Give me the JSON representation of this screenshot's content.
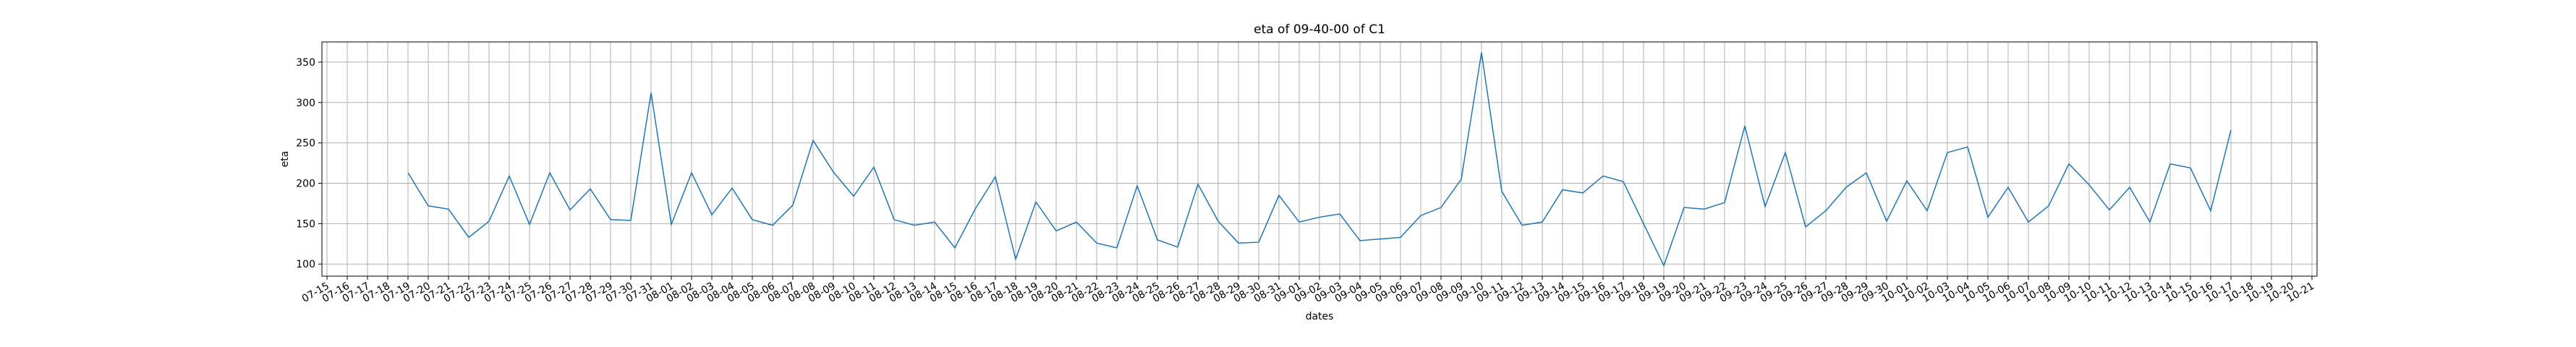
{
  "chart_data": {
    "type": "line",
    "title": "eta of 09-40-00 of C1",
    "x_label": "dates",
    "y_label": "eta",
    "categories": [
      "07-15",
      "07-16",
      "07-17",
      "07-18",
      "07-19",
      "07-20",
      "07-21",
      "07-22",
      "07-23",
      "07-24",
      "07-25",
      "07-26",
      "07-27",
      "07-28",
      "07-29",
      "07-30",
      "07-31",
      "08-01",
      "08-02",
      "08-03",
      "08-04",
      "08-05",
      "08-06",
      "08-07",
      "08-08",
      "08-09",
      "08-10",
      "08-11",
      "08-12",
      "08-13",
      "08-14",
      "08-15",
      "08-16",
      "08-17",
      "08-18",
      "08-19",
      "08-20",
      "08-21",
      "08-22",
      "08-23",
      "08-24",
      "08-25",
      "08-26",
      "08-27",
      "08-28",
      "08-29",
      "08-30",
      "08-31",
      "09-01",
      "09-02",
      "09-03",
      "09-04",
      "09-05",
      "09-06",
      "09-07",
      "09-08",
      "09-09",
      "09-10",
      "09-11",
      "09-12",
      "09-13",
      "09-14",
      "09-15",
      "09-16",
      "09-17",
      "09-18",
      "09-19",
      "09-20",
      "09-21",
      "09-22",
      "09-23",
      "09-24",
      "09-25",
      "09-26",
      "09-27",
      "09-28",
      "09-29",
      "09-30",
      "10-01",
      "10-02",
      "10-03",
      "10-04",
      "10-05",
      "10-06",
      "10-07",
      "10-08",
      "10-09",
      "10-10",
      "10-11",
      "10-12",
      "10-13",
      "10-14",
      "10-15",
      "10-16",
      "10-17",
      "10-18",
      "10-19",
      "10-20",
      "10-21"
    ],
    "series": [
      {
        "name": "eta",
        "color": "#1f77b4",
        "values": [
          null,
          null,
          null,
          null,
          213,
          172,
          168,
          133,
          153,
          209,
          149,
          213,
          167,
          193,
          155,
          154,
          312,
          149,
          213,
          161,
          194,
          155,
          148,
          173,
          253,
          214,
          184,
          220,
          155,
          148,
          152,
          120,
          168,
          208,
          106,
          177,
          141,
          152,
          126,
          120,
          197,
          130,
          121,
          199,
          153,
          126,
          127,
          185,
          152,
          158,
          162,
          129,
          131,
          133,
          160,
          170,
          205,
          362,
          190,
          148,
          152,
          192,
          188,
          209,
          202,
          150,
          98,
          170,
          168,
          176,
          271,
          171,
          238,
          146,
          166,
          195,
          213,
          153,
          203,
          166,
          238,
          245,
          158,
          195,
          152,
          172,
          224,
          198,
          167,
          195,
          152,
          224,
          219,
          166,
          266,
          null,
          null,
          null,
          null
        ]
      }
    ],
    "ylim": [
      85,
      375
    ],
    "yticks": [
      100,
      150,
      200,
      250,
      300,
      350
    ],
    "grid": true
  }
}
